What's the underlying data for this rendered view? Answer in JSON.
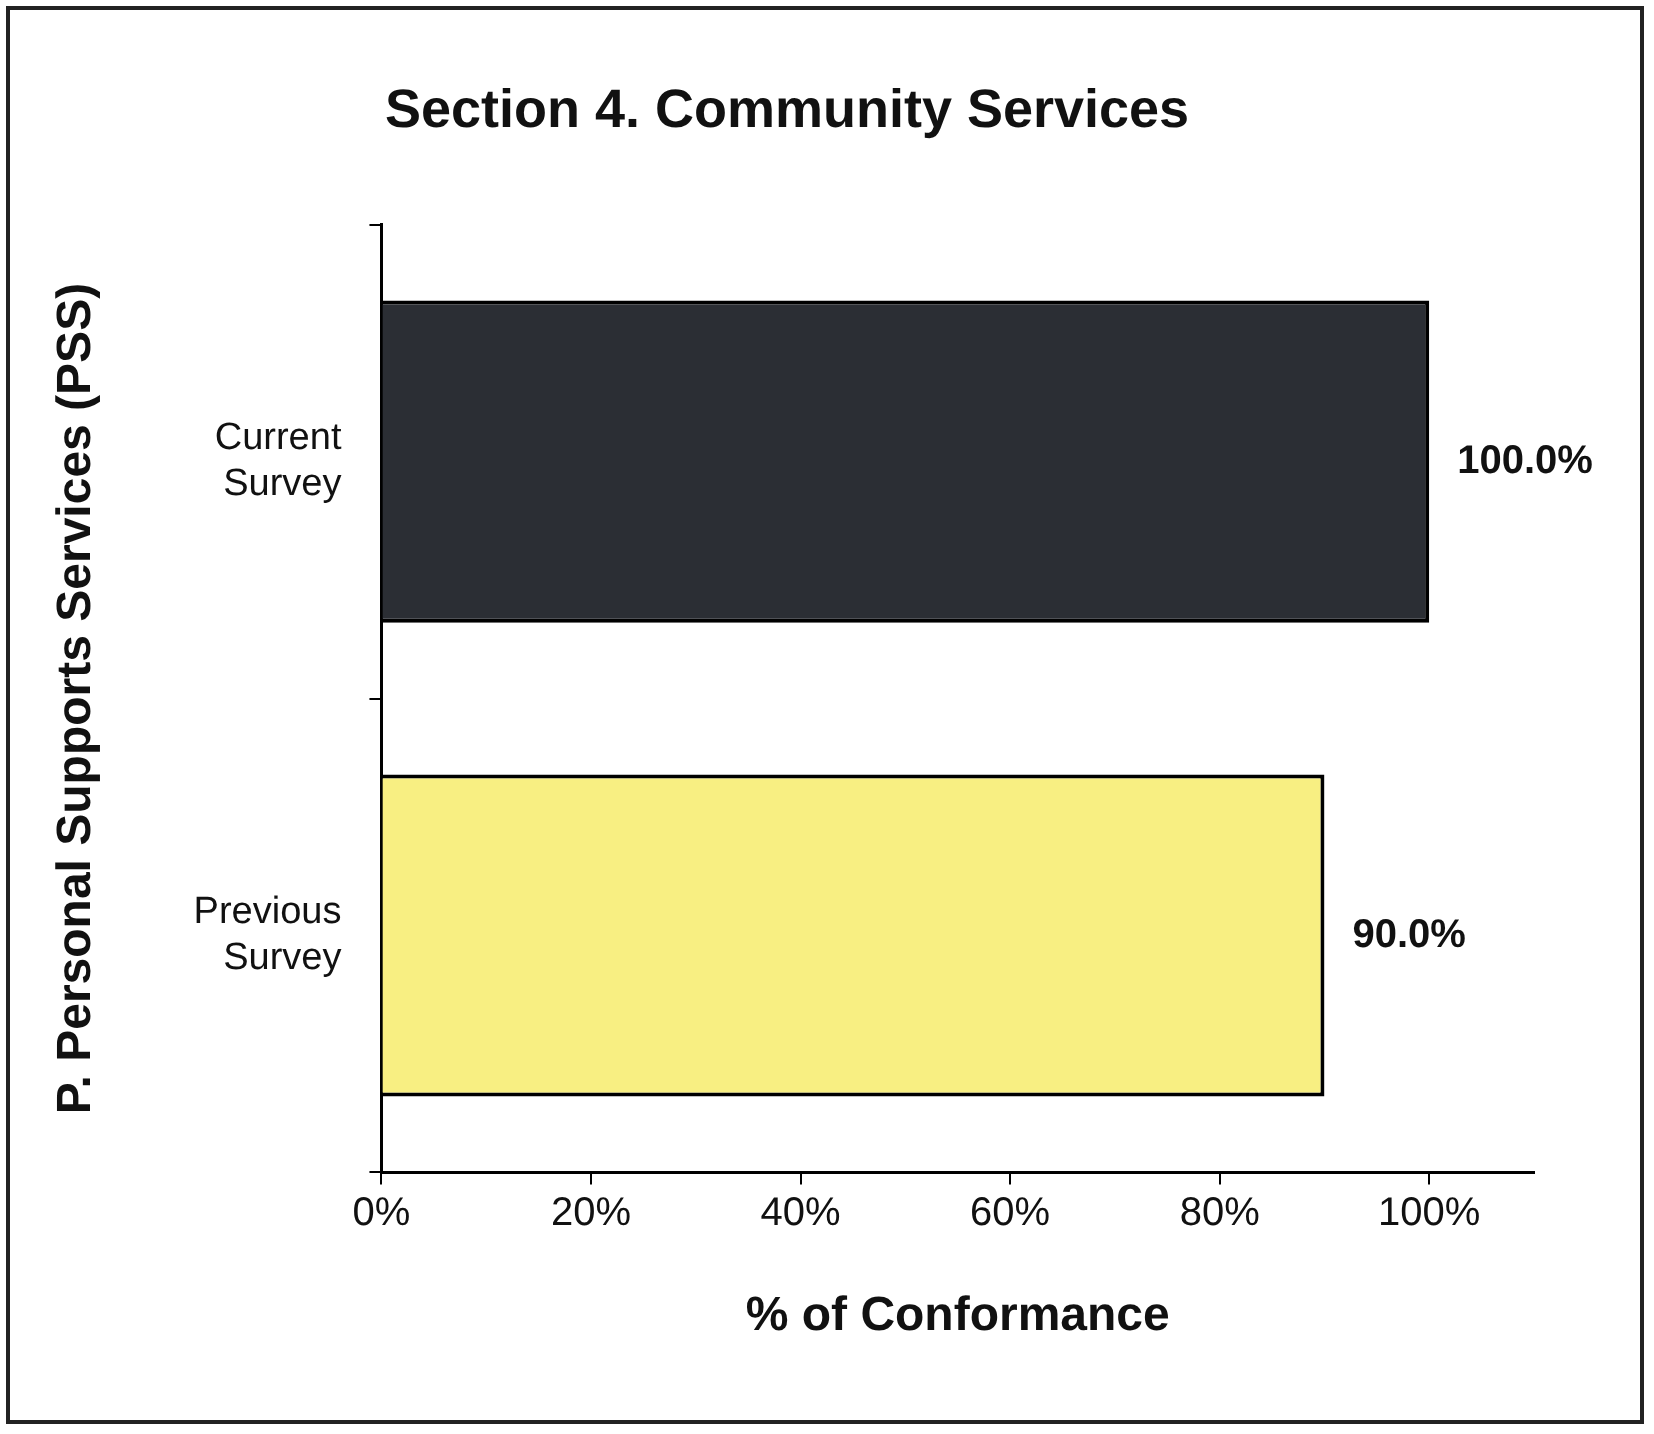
{
  "chart_data": {
    "type": "bar",
    "orientation": "horizontal",
    "title": "Section 4. Community Services",
    "xlabel": "% of Conformance",
    "ylabel": "P. Personal Supports Services (PSS)",
    "categories": [
      "Current Survey",
      "Previous Survey"
    ],
    "values": [
      100,
      90
    ],
    "colors": [
      "#2b2e34",
      "#f8ef82"
    ],
    "value_labels": [
      "100.0%",
      "90.0%"
    ],
    "xlim": [
      0,
      110
    ],
    "xticks": [
      {
        "value": 0,
        "label": "0%"
      },
      {
        "value": 20,
        "label": "20%"
      },
      {
        "value": 40,
        "label": "40%"
      },
      {
        "value": 60,
        "label": "60%"
      },
      {
        "value": 80,
        "label": "80%"
      },
      {
        "value": 100,
        "label": "100%"
      }
    ],
    "grid": false,
    "legend": false
  }
}
